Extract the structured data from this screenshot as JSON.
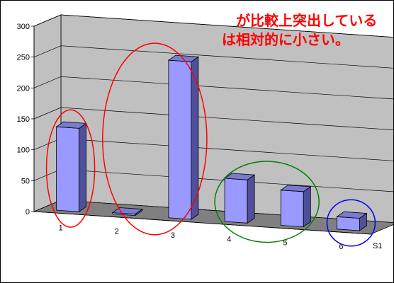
{
  "chart_data": {
    "type": "bar",
    "style": "3d",
    "categories": [
      "1",
      "2",
      "3",
      "4",
      "5",
      "6"
    ],
    "series": [
      {
        "name": "S1",
        "values": [
          135,
          0,
          255,
          70,
          57,
          20
        ]
      }
    ],
    "y_ticks": [
      "0",
      "50",
      "100",
      "150",
      "200",
      "250",
      "300"
    ],
    "ylim": [
      0,
      300
    ],
    "grid": true,
    "legend": "bottom-right",
    "bar_color": "#9999ff",
    "wall_color": "#c0c0c0",
    "floor_color": "#808080",
    "annotations": {
      "lines": [
        "が比較上突出している",
        "は相対的に小さい。"
      ],
      "color": "#ff0000"
    },
    "ellipses": [
      {
        "categories": [
          "1"
        ],
        "color": "#ff0000"
      },
      {
        "categories": [
          "2",
          "3"
        ],
        "color": "#ff0000"
      },
      {
        "categories": [
          "4",
          "5"
        ],
        "color": "#008000"
      },
      {
        "categories": [
          "6"
        ],
        "color": "#0000ff"
      }
    ]
  }
}
